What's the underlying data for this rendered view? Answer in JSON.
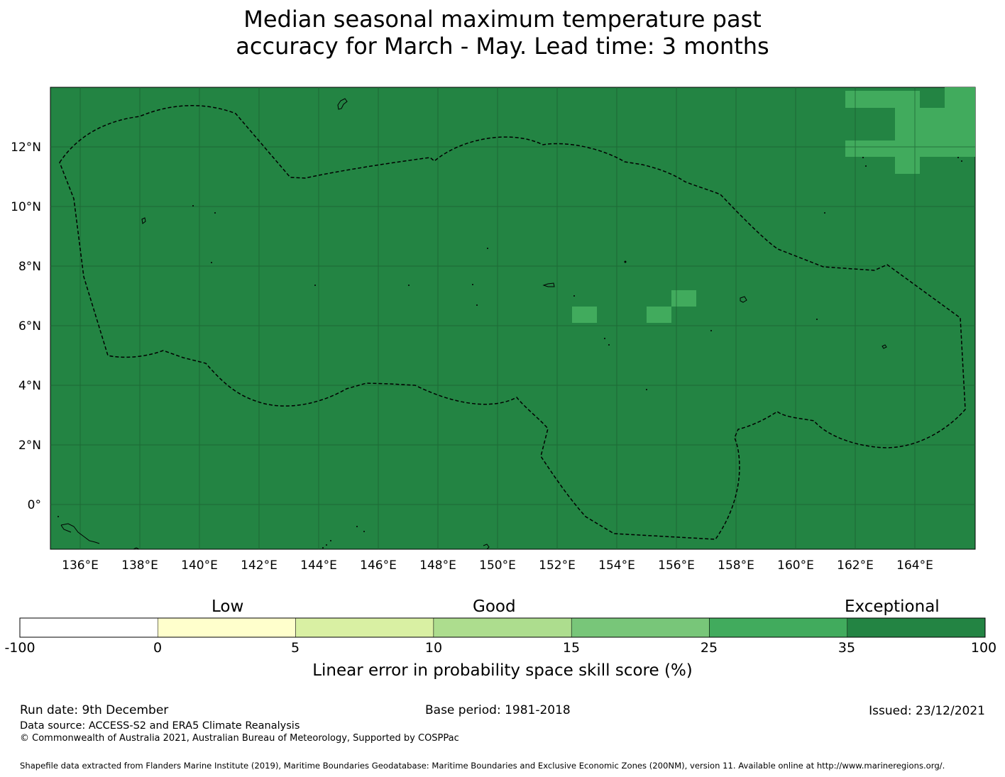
{
  "title": {
    "line1": "Median seasonal maximum temperature past",
    "line2": "accuracy for March - May. Lead time: 3 months"
  },
  "map": {
    "x_ticks": [
      "136°E",
      "138°E",
      "140°E",
      "142°E",
      "144°E",
      "146°E",
      "148°E",
      "150°E",
      "152°E",
      "154°E",
      "156°E",
      "158°E",
      "160°E",
      "162°E",
      "164°E"
    ],
    "y_ticks": [
      "12°N",
      "10°N",
      "8°N",
      "6°N",
      "4°N",
      "2°N",
      "0°"
    ],
    "lon_range": [
      135,
      166
    ],
    "lat_range": [
      -1.5,
      14
    ],
    "base_category_color": "#238443",
    "patch_category_color": "#41ab5d",
    "boundary_style": "dashed"
  },
  "colorbar": {
    "category_labels": {
      "low": "Low",
      "good": "Good",
      "exceptional": "Exceptional"
    },
    "ticks": [
      "-100",
      "0",
      "5",
      "10",
      "15",
      "25",
      "35",
      "100"
    ],
    "colors": [
      "#ffffff",
      "#ffffcc",
      "#d9f0a3",
      "#addd8e",
      "#78c679",
      "#41ab5d",
      "#238443"
    ],
    "caption": "Linear error in probability space skill score (%)"
  },
  "footer": {
    "run_date": "Run date: 9th December",
    "base_period": "Base period: 1981-2018",
    "issued": "Issued: 23/12/2021",
    "data_source": "Data source: ACCESS-S2 and ERA5 Climate Reanalysis",
    "copyright": "© Commonwealth of Australia 2021, Australian Bureau of Meteorology, Supported by COSPPac",
    "shapefile": "Shapefile data extracted from Flanders Marine Institute (2019), Maritime Boundaries Geodatabase: Maritime Boundaries and Exclusive Economic Zones (200NM), version 11. Available online at http://www.marineregions.org/."
  }
}
